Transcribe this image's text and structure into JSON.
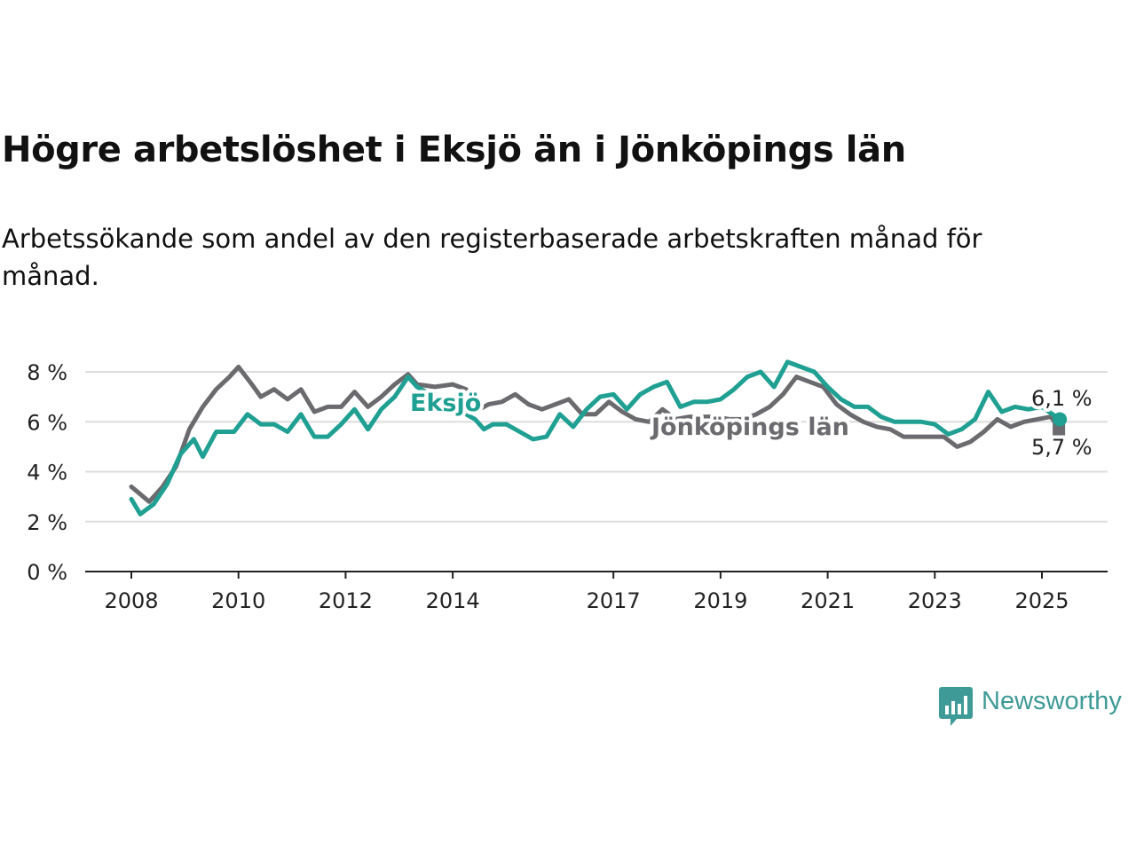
{
  "title": "Högre arbetslöshet i Eksjö än i Jönköpings län",
  "subtitle": "Arbetssökande som andel av den registerbaserade arbetskraften månad för månad.",
  "brand": {
    "name": "Newsworthy",
    "icon": "newsworthy-logo-icon",
    "color": "#3d9a96"
  },
  "colors": {
    "series_1": "#1fa092",
    "series_2": "#6b6a6e",
    "grid": "#dddddd",
    "axis": "#222222"
  },
  "chart_data": {
    "type": "line",
    "x_type": "date",
    "y_unit": "%",
    "ylim": [
      0,
      8.3
    ],
    "xlim": [
      "2007-11",
      "2025-10"
    ],
    "y_ticks": [
      0,
      2,
      4,
      6,
      8
    ],
    "y_tick_labels": [
      "0 %",
      "2 %",
      "4 %",
      "6 %",
      "8 %"
    ],
    "x_ticks": [
      "2008-01",
      "2010-01",
      "2012-01",
      "2014-01",
      "2017-01",
      "2019-01",
      "2021-01",
      "2023-01",
      "2025-01"
    ],
    "x_tick_labels": [
      "2008",
      "2010",
      "2012",
      "2014",
      "2017",
      "2019",
      "2021",
      "2023",
      "2025"
    ],
    "grid": true,
    "legend": "direct labels on the lines",
    "series": [
      {
        "name": "Eksjö",
        "color": "#1fa092",
        "end_label": "6,1 %",
        "points": [
          [
            "2008-01",
            2.9
          ],
          [
            "2008-03",
            2.3
          ],
          [
            "2008-06",
            2.7
          ],
          [
            "2008-09",
            3.5
          ],
          [
            "2008-12",
            4.7
          ],
          [
            "2009-03",
            5.3
          ],
          [
            "2009-05",
            4.6
          ],
          [
            "2009-08",
            5.6
          ],
          [
            "2009-12",
            5.6
          ],
          [
            "2010-03",
            6.3
          ],
          [
            "2010-06",
            5.9
          ],
          [
            "2010-09",
            5.9
          ],
          [
            "2010-12",
            5.6
          ],
          [
            "2011-03",
            6.3
          ],
          [
            "2011-06",
            5.4
          ],
          [
            "2011-09",
            5.4
          ],
          [
            "2011-12",
            5.9
          ],
          [
            "2012-03",
            6.5
          ],
          [
            "2012-06",
            5.7
          ],
          [
            "2012-09",
            6.5
          ],
          [
            "2012-12",
            7.0
          ],
          [
            "2013-03",
            7.8
          ],
          [
            "2013-05",
            7.4
          ],
          [
            "2014-06",
            6.1
          ],
          [
            "2014-08",
            5.7
          ],
          [
            "2014-10",
            5.9
          ],
          [
            "2015-01",
            5.9
          ],
          [
            "2015-04",
            5.6
          ],
          [
            "2015-07",
            5.3
          ],
          [
            "2015-10",
            5.4
          ],
          [
            "2016-01",
            6.3
          ],
          [
            "2016-04",
            5.8
          ],
          [
            "2016-07",
            6.5
          ],
          [
            "2016-10",
            7.0
          ],
          [
            "2017-01",
            7.1
          ],
          [
            "2017-04",
            6.5
          ],
          [
            "2017-07",
            7.1
          ],
          [
            "2017-10",
            7.4
          ],
          [
            "2018-01",
            7.6
          ],
          [
            "2018-04",
            6.6
          ],
          [
            "2018-07",
            6.8
          ],
          [
            "2018-10",
            6.8
          ],
          [
            "2019-01",
            6.9
          ],
          [
            "2019-04",
            7.3
          ],
          [
            "2019-07",
            7.8
          ],
          [
            "2019-10",
            8.0
          ],
          [
            "2020-01",
            7.4
          ],
          [
            "2020-04",
            8.4
          ],
          [
            "2020-07",
            8.2
          ],
          [
            "2020-10",
            8.0
          ],
          [
            "2021-01",
            7.4
          ],
          [
            "2021-04",
            6.9
          ],
          [
            "2021-07",
            6.6
          ],
          [
            "2021-10",
            6.6
          ],
          [
            "2022-01",
            6.2
          ],
          [
            "2022-04",
            6.0
          ],
          [
            "2022-07",
            6.0
          ],
          [
            "2022-10",
            6.0
          ],
          [
            "2023-01",
            5.9
          ],
          [
            "2023-04",
            5.5
          ],
          [
            "2023-07",
            5.7
          ],
          [
            "2023-10",
            6.1
          ],
          [
            "2024-01",
            7.2
          ],
          [
            "2024-04",
            6.4
          ],
          [
            "2024-07",
            6.6
          ],
          [
            "2024-10",
            6.5
          ],
          [
            "2025-01",
            6.6
          ],
          [
            "2025-05",
            6.1
          ]
        ]
      },
      {
        "name": "Jönköpings län",
        "color": "#6b6a6e",
        "end_label": "5,7 %",
        "points": [
          [
            "2008-01",
            3.4
          ],
          [
            "2008-03",
            3.1
          ],
          [
            "2008-05",
            2.8
          ],
          [
            "2008-08",
            3.4
          ],
          [
            "2008-11",
            4.2
          ],
          [
            "2009-02",
            5.7
          ],
          [
            "2009-05",
            6.6
          ],
          [
            "2009-08",
            7.3
          ],
          [
            "2009-11",
            7.8
          ],
          [
            "2010-01",
            8.2
          ],
          [
            "2010-04",
            7.5
          ],
          [
            "2010-06",
            7.0
          ],
          [
            "2010-09",
            7.3
          ],
          [
            "2010-12",
            6.9
          ],
          [
            "2011-03",
            7.3
          ],
          [
            "2011-06",
            6.4
          ],
          [
            "2011-09",
            6.6
          ],
          [
            "2011-12",
            6.6
          ],
          [
            "2012-03",
            7.2
          ],
          [
            "2012-06",
            6.6
          ],
          [
            "2012-09",
            7.0
          ],
          [
            "2012-12",
            7.5
          ],
          [
            "2013-03",
            7.9
          ],
          [
            "2013-05",
            7.5
          ],
          [
            "2013-09",
            7.4
          ],
          [
            "2014-01",
            7.5
          ],
          [
            "2014-04",
            7.3
          ],
          [
            "2014-06",
            6.4
          ],
          [
            "2014-09",
            6.7
          ],
          [
            "2014-12",
            6.8
          ],
          [
            "2015-03",
            7.1
          ],
          [
            "2015-06",
            6.7
          ],
          [
            "2015-09",
            6.5
          ],
          [
            "2015-12",
            6.7
          ],
          [
            "2016-03",
            6.9
          ],
          [
            "2016-06",
            6.3
          ],
          [
            "2016-09",
            6.3
          ],
          [
            "2016-12",
            6.8
          ],
          [
            "2017-03",
            6.4
          ],
          [
            "2017-06",
            6.1
          ],
          [
            "2017-09",
            6.0
          ],
          [
            "2017-12",
            6.5
          ],
          [
            "2018-03",
            6.1
          ],
          [
            "2018-06",
            6.2
          ],
          [
            "2018-09",
            6.2
          ],
          [
            "2018-12",
            6.2
          ],
          [
            "2019-03",
            6.1
          ],
          [
            "2019-06",
            6.1
          ],
          [
            "2019-09",
            6.3
          ],
          [
            "2019-12",
            6.6
          ],
          [
            "2020-03",
            7.1
          ],
          [
            "2020-06",
            7.8
          ],
          [
            "2020-09",
            7.6
          ],
          [
            "2020-12",
            7.4
          ],
          [
            "2021-03",
            6.7
          ],
          [
            "2021-06",
            6.3
          ],
          [
            "2021-09",
            6.0
          ],
          [
            "2021-12",
            5.8
          ],
          [
            "2022-03",
            5.7
          ],
          [
            "2022-06",
            5.4
          ],
          [
            "2022-09",
            5.4
          ],
          [
            "2022-12",
            5.4
          ],
          [
            "2023-03",
            5.4
          ],
          [
            "2023-06",
            5.0
          ],
          [
            "2023-09",
            5.2
          ],
          [
            "2023-12",
            5.6
          ],
          [
            "2024-03",
            6.1
          ],
          [
            "2024-06",
            5.8
          ],
          [
            "2024-09",
            6.0
          ],
          [
            "2024-12",
            6.1
          ],
          [
            "2025-03",
            6.2
          ],
          [
            "2025-05",
            5.7
          ]
        ]
      }
    ]
  }
}
